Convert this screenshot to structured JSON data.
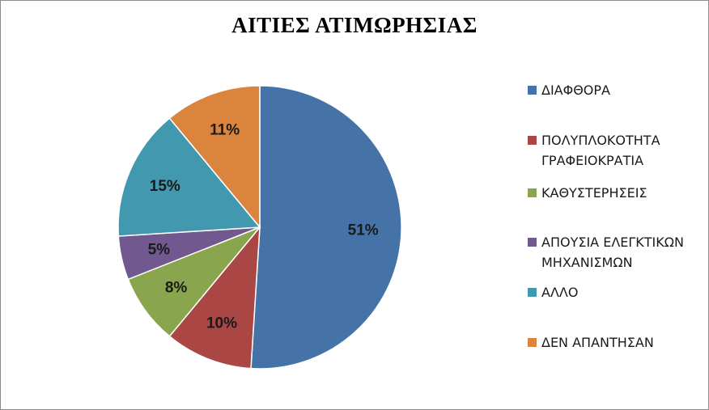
{
  "chart_data": {
    "type": "pie",
    "title": "ΑΙΤΙΕΣ ΑΤΙΜΩΡΗΣΙΑΣ",
    "categories": [
      "ΔΙΑΦΘΟΡΑ",
      "ΠΟΛΥΠΛΟΚΟΤΗΤΑ ΓΡΑΦΕΙΟΚΡΑΤΙΑ",
      "ΚΑΘΥΣΤΕΡΗΣΕΙΣ",
      "ΑΠΟΥΣΙΑ ΕΛΕΓΚΤΙΚΩΝ ΜΗΧΑΝΙΣΜΩΝ",
      "ΑΛΛΟ",
      "ΔΕΝ ΑΠΑΝΤΗΣΑΝ"
    ],
    "legend_lines": [
      "ΔΙΑΦΘΟΡΑ",
      "ΠΟΛΥΠΛΟΚΟΤΗΤΑ\nΓΡΑΦΕΙΟΚΡΑΤΙΑ",
      "ΚΑΘΥΣΤΕΡΗΣΕΙΣ",
      "ΑΠΟΥΣΙΑ ΕΛΕΓΚΤΙΚΩΝ\nΜΗΧΑΝΙΣΜΩΝ",
      "ΑΛΛΟ",
      "ΔΕΝ ΑΠΑΝΤΗΣΑΝ"
    ],
    "values": [
      51,
      10,
      8,
      5,
      15,
      11
    ],
    "data_labels": [
      "51%",
      "10%",
      "8%",
      "5%",
      "15%",
      "11%"
    ],
    "unit": "%",
    "colors": [
      "#4572A7",
      "#AA4643",
      "#89A54E",
      "#71588F",
      "#4198AF",
      "#DB843D"
    ],
    "legend_position": "right",
    "start_angle": "top (12 o'clock), clockwise"
  }
}
